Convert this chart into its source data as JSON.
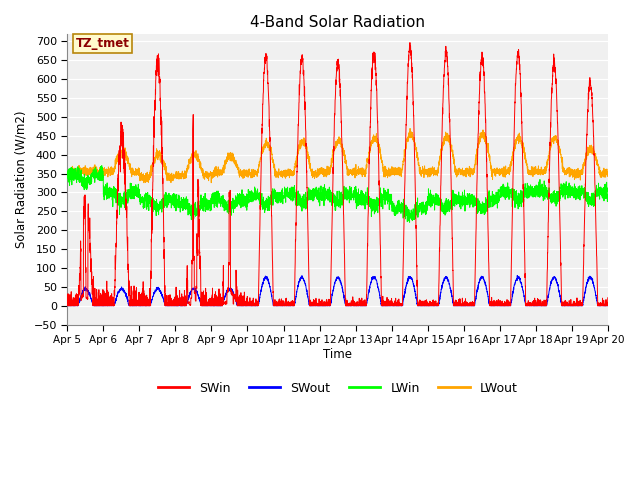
{
  "title": "4-Band Solar Radiation",
  "ylabel": "Solar Radiation (W/m2)",
  "xlabel": "Time",
  "ylim": [
    -50,
    720
  ],
  "yticks": [
    -50,
    0,
    50,
    100,
    150,
    200,
    250,
    300,
    350,
    400,
    450,
    500,
    550,
    600,
    650,
    700
  ],
  "xtick_labels": [
    "Apr 5",
    "Apr 6",
    "Apr 7",
    "Apr 8",
    "Apr 9",
    "Apr 10",
    "Apr 11",
    "Apr 12",
    "Apr 13",
    "Apr 14",
    "Apr 15",
    "Apr 16",
    "Apr 17",
    "Apr 18",
    "Apr 19",
    "Apr 20"
  ],
  "annotation_text": "TZ_tmet",
  "annotation_color": "#8B0000",
  "annotation_bg": "#FFFACD",
  "annotation_border": "#B8860B",
  "colors": {
    "SWin": "#FF0000",
    "SWout": "#0000FF",
    "LWin": "#00FF00",
    "LWout": "#FFA500"
  },
  "legend_entries": [
    "SWin",
    "SWout",
    "LWin",
    "LWout"
  ],
  "plot_bg": "#F0F0F0",
  "grid_color": "#FFFFFF",
  "num_days": 15,
  "points_per_day": 288,
  "SWin_peaks": [
    270,
    440,
    640,
    480,
    280,
    660,
    655,
    645,
    670,
    685,
    675,
    660,
    670,
    640,
    590
  ],
  "figsize": [
    6.4,
    4.8
  ],
  "dpi": 100
}
